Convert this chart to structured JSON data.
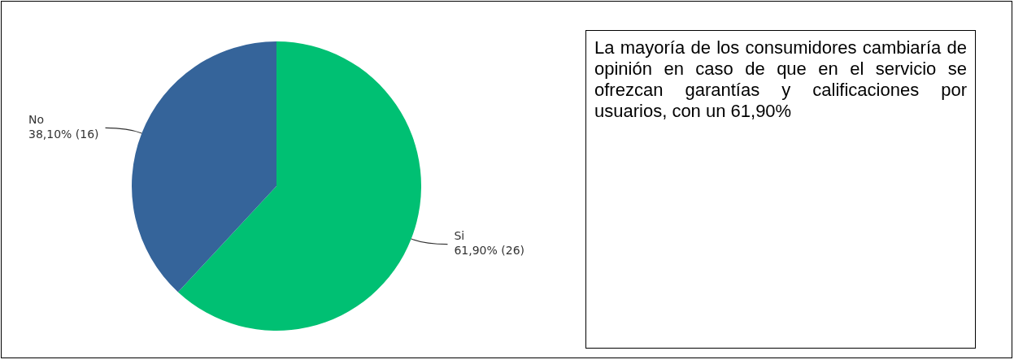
{
  "chart_data": {
    "type": "pie",
    "categories": [
      "Si",
      "No"
    ],
    "values": [
      26,
      16
    ],
    "colors": [
      "#00c073",
      "#35649a"
    ],
    "value_labels": [
      "61,90% (26)",
      "38,10% (16)"
    ],
    "legend": false,
    "annotations": [
      "La mayoría de los consumidores cambiaría de opinión en caso de que en el servicio se ofrezcan garantías y calificaciones por usuarios, con un 61,90%"
    ]
  }
}
